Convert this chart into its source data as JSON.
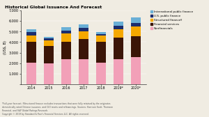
{
  "title": "Historical Global Issuance And Forecast",
  "ylabel": "(US$, B)",
  "years": [
    "2014",
    "2015",
    "2016",
    "2017",
    "2018",
    "2019*",
    "2020*"
  ],
  "categories": [
    "Nonfinancials",
    "Financial services",
    "Structured finance§",
    "U.S. public finance",
    "International public finance"
  ],
  "colors": [
    "#f2a0b8",
    "#3b1507",
    "#f5a800",
    "#1c2d6e",
    "#6aafd6"
  ],
  "values": {
    "Nonfinancials": [
      2050,
      1950,
      2350,
      2350,
      2050,
      2350,
      2600
    ],
    "Financial services": [
      1950,
      1700,
      1700,
      1950,
      1950,
      2050,
      1950
    ],
    "Structured finance§": [
      650,
      500,
      750,
      750,
      600,
      850,
      950
    ],
    "U.S. public finance": [
      280,
      180,
      300,
      280,
      180,
      320,
      320
    ],
    "International public finance": [
      270,
      170,
      350,
      350,
      170,
      350,
      550
    ]
  },
  "ylim": [
    0,
    7000
  ],
  "yticks": [
    0,
    1000,
    2000,
    3000,
    4000,
    5000,
    6000,
    7000
  ],
  "footnote1": "*Full-year forecast. §Structured finance excludes transactions that were fully retained by the originator,",
  "footnote2": "domestically rated Chinese issuance, and CLO resets and refinancings. Sources: Harrison Scott, Thomson",
  "footnote3": "Financial, and S&P Global Ratings Research.",
  "footnote4": "Copyright © 2019 by Standard & Poor's Financial Services LLC. All rights reserved.",
  "background_color": "#f0ece2",
  "bar_width": 0.55
}
